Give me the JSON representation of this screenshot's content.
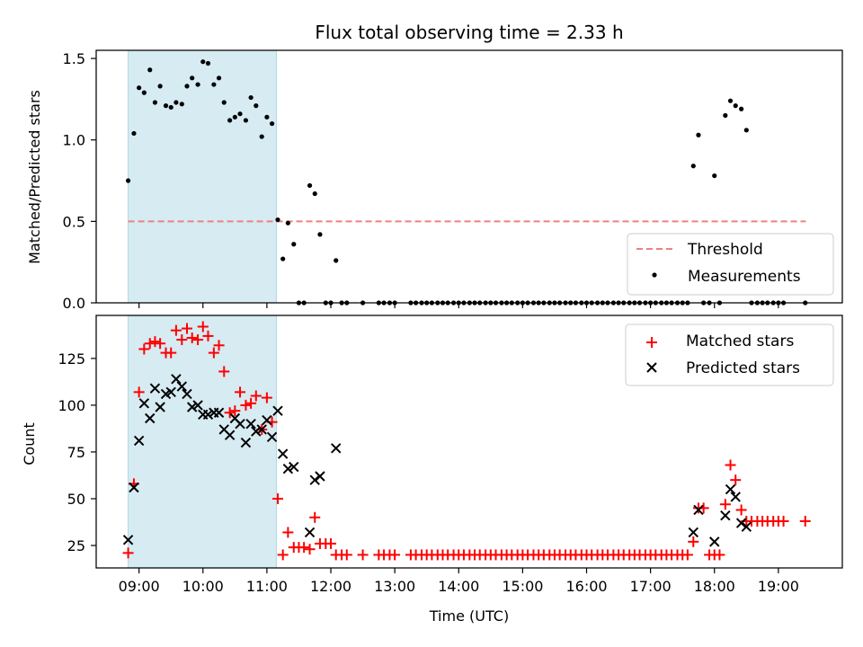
{
  "chart_data": [
    {
      "type": "scatter",
      "panel": "top",
      "title": "Flux total observing time = 2.33 h",
      "xlabel": "",
      "ylabel": "Matched/Predicted stars",
      "xlim_hours": [
        8.33,
        20.0
      ],
      "ylim": [
        0,
        1.55
      ],
      "yticks": [
        0.0,
        0.5,
        1.0,
        1.5
      ],
      "yticklabels": [
        "0.0",
        "0.5",
        "1.0",
        "1.5"
      ],
      "legend_position": "lower-right",
      "highlight_span_hours": [
        8.83,
        11.15
      ],
      "threshold": {
        "name": "Threshold",
        "value": 0.5,
        "x_range_hours": [
          8.83,
          19.43
        ],
        "color": "#f08080"
      },
      "series": [
        {
          "name": "Measurements",
          "color": "#000000",
          "x_hours": [
            8.83,
            8.92,
            9.0,
            9.08,
            9.17,
            9.25,
            9.33,
            9.42,
            9.5,
            9.58,
            9.67,
            9.75,
            9.83,
            9.92,
            10.0,
            10.08,
            10.17,
            10.25,
            10.33,
            10.42,
            10.5,
            10.58,
            10.67,
            10.75,
            10.83,
            10.92,
            11.0,
            11.08,
            11.17,
            11.25,
            11.33,
            11.42,
            11.5,
            11.58,
            11.67,
            11.75,
            11.83,
            11.92,
            12.0,
            12.08,
            12.17,
            12.25,
            12.5,
            12.75,
            12.83,
            12.92,
            13.0,
            13.25,
            13.33,
            13.42,
            13.5,
            13.58,
            13.67,
            13.75,
            13.83,
            13.92,
            14.0,
            14.08,
            14.17,
            14.25,
            14.33,
            14.42,
            14.5,
            14.58,
            14.67,
            14.75,
            14.83,
            14.92,
            15.0,
            15.08,
            15.17,
            15.25,
            15.33,
            15.42,
            15.5,
            15.58,
            15.67,
            15.75,
            15.83,
            15.92,
            16.0,
            16.08,
            16.17,
            16.25,
            16.33,
            16.42,
            16.5,
            16.58,
            16.67,
            16.75,
            16.83,
            16.92,
            17.0,
            17.08,
            17.17,
            17.25,
            17.33,
            17.42,
            17.5,
            17.58,
            17.67,
            17.75,
            17.83,
            17.92,
            18.0,
            18.08,
            18.17,
            18.25,
            18.33,
            18.42,
            18.5,
            18.58,
            18.67,
            18.75,
            18.83,
            18.92,
            19.0,
            19.08,
            19.42
          ],
          "values": [
            0.75,
            1.04,
            1.32,
            1.29,
            1.43,
            1.23,
            1.33,
            1.21,
            1.2,
            1.23,
            1.22,
            1.33,
            1.38,
            1.34,
            1.48,
            1.47,
            1.34,
            1.38,
            1.23,
            1.12,
            1.14,
            1.16,
            1.12,
            1.26,
            1.21,
            1.02,
            1.14,
            1.1,
            0.51,
            0.27,
            0.49,
            0.36,
            0.0,
            0.0,
            0.72,
            0.67,
            0.42,
            0.0,
            0.0,
            0.26,
            0.0,
            0.0,
            0.0,
            0.0,
            0.0,
            0.0,
            0.0,
            0.0,
            0.0,
            0.0,
            0.0,
            0.0,
            0.0,
            0.0,
            0.0,
            0.0,
            0.0,
            0.0,
            0.0,
            0.0,
            0.0,
            0.0,
            0.0,
            0.0,
            0.0,
            0.0,
            0.0,
            0.0,
            0.0,
            0.0,
            0.0,
            0.0,
            0.0,
            0.0,
            0.0,
            0.0,
            0.0,
            0.0,
            0.0,
            0.0,
            0.0,
            0.0,
            0.0,
            0.0,
            0.0,
            0.0,
            0.0,
            0.0,
            0.0,
            0.0,
            0.0,
            0.0,
            0.0,
            0.0,
            0.0,
            0.0,
            0.0,
            0.0,
            0.0,
            0.0,
            0.84,
            1.03,
            0.0,
            0.0,
            0.78,
            0.0,
            1.15,
            1.24,
            1.21,
            1.19,
            1.06,
            0.0,
            0.0,
            0.0,
            0.0,
            0.0,
            0.0,
            0.0,
            0.0
          ]
        }
      ]
    },
    {
      "type": "scatter",
      "panel": "bottom",
      "title": "",
      "xlabel": "Time (UTC)",
      "ylabel": "Count",
      "xlim_hours": [
        8.33,
        20.0
      ],
      "ylim": [
        13,
        148
      ],
      "xticks_hours": [
        9,
        10,
        11,
        12,
        13,
        14,
        15,
        16,
        17,
        18,
        19
      ],
      "xticklabels": [
        "09:00",
        "10:00",
        "11:00",
        "12:00",
        "13:00",
        "14:00",
        "15:00",
        "16:00",
        "17:00",
        "18:00",
        "19:00"
      ],
      "yticks": [
        25,
        50,
        75,
        100,
        125
      ],
      "yticklabels": [
        "25",
        "50",
        "75",
        "100",
        "125"
      ],
      "legend_position": "upper-right",
      "highlight_span_hours": [
        8.83,
        11.15
      ],
      "series": [
        {
          "name": "Matched stars",
          "color": "#ff0000",
          "marker": "plus",
          "x_hours": [
            8.83,
            8.92,
            9.0,
            9.08,
            9.17,
            9.25,
            9.33,
            9.42,
            9.5,
            9.58,
            9.67,
            9.75,
            9.83,
            9.92,
            10.0,
            10.08,
            10.17,
            10.25,
            10.33,
            10.42,
            10.5,
            10.58,
            10.67,
            10.75,
            10.83,
            10.92,
            11.0,
            11.08,
            11.17,
            11.25,
            11.33,
            11.42,
            11.5,
            11.58,
            11.67,
            11.75,
            11.83,
            11.92,
            12.0,
            12.08,
            12.17,
            12.25,
            12.5,
            12.75,
            12.83,
            12.92,
            13.0,
            13.25,
            13.33,
            13.42,
            13.5,
            13.58,
            13.67,
            13.75,
            13.83,
            13.92,
            14.0,
            14.08,
            14.17,
            14.25,
            14.33,
            14.42,
            14.5,
            14.58,
            14.67,
            14.75,
            14.83,
            14.92,
            15.0,
            15.08,
            15.17,
            15.25,
            15.33,
            15.42,
            15.5,
            15.58,
            15.67,
            15.75,
            15.83,
            15.92,
            16.0,
            16.08,
            16.17,
            16.25,
            16.33,
            16.42,
            16.5,
            16.58,
            16.67,
            16.75,
            16.83,
            16.92,
            17.0,
            17.08,
            17.17,
            17.25,
            17.33,
            17.42,
            17.5,
            17.58,
            17.67,
            17.75,
            17.83,
            17.92,
            18.0,
            18.08,
            18.17,
            18.25,
            18.33,
            18.42,
            18.5,
            18.58,
            18.67,
            18.75,
            18.83,
            18.92,
            19.0,
            19.08,
            19.42
          ],
          "values": [
            21,
            58,
            107,
            130,
            133,
            134,
            133,
            128,
            128,
            140,
            135,
            141,
            136,
            135,
            142,
            137,
            128,
            132,
            118,
            96,
            97,
            107,
            100,
            101,
            105,
            87,
            104,
            91,
            50,
            20,
            32,
            24,
            24,
            24,
            23,
            40,
            26,
            26,
            26,
            20,
            20,
            20,
            20,
            20,
            20,
            20,
            20,
            20,
            20,
            20,
            20,
            20,
            20,
            20,
            20,
            20,
            20,
            20,
            20,
            20,
            20,
            20,
            20,
            20,
            20,
            20,
            20,
            20,
            20,
            20,
            20,
            20,
            20,
            20,
            20,
            20,
            20,
            20,
            20,
            20,
            20,
            20,
            20,
            20,
            20,
            20,
            20,
            20,
            20,
            20,
            20,
            20,
            20,
            20,
            20,
            20,
            20,
            20,
            20,
            20,
            27,
            45,
            45,
            20,
            20,
            20,
            47,
            68,
            60,
            44,
            38,
            38,
            38,
            38,
            38,
            38,
            38,
            38,
            38
          ]
        },
        {
          "name": "Predicted stars",
          "color": "#000000",
          "marker": "x",
          "x_hours": [
            8.83,
            8.92,
            9.0,
            9.08,
            9.17,
            9.25,
            9.33,
            9.42,
            9.5,
            9.58,
            9.67,
            9.75,
            9.83,
            9.92,
            10.0,
            10.08,
            10.17,
            10.25,
            10.33,
            10.42,
            10.5,
            10.58,
            10.67,
            10.75,
            10.83,
            10.92,
            11.0,
            11.08,
            11.17,
            11.25,
            11.33,
            11.42,
            11.67,
            11.75,
            11.83,
            12.08,
            17.67,
            17.75,
            18.0,
            18.17,
            18.25,
            18.33,
            18.42,
            18.5
          ],
          "values": [
            28,
            56,
            81,
            101,
            93,
            109,
            99,
            106,
            107,
            114,
            110,
            106,
            99,
            100,
            95,
            95,
            96,
            96,
            87,
            84,
            93,
            90,
            80,
            90,
            86,
            87,
            92,
            83,
            97,
            74,
            66,
            67,
            32,
            60,
            62,
            77,
            32,
            44,
            27,
            41,
            55,
            51,
            37,
            35
          ]
        }
      ]
    }
  ]
}
